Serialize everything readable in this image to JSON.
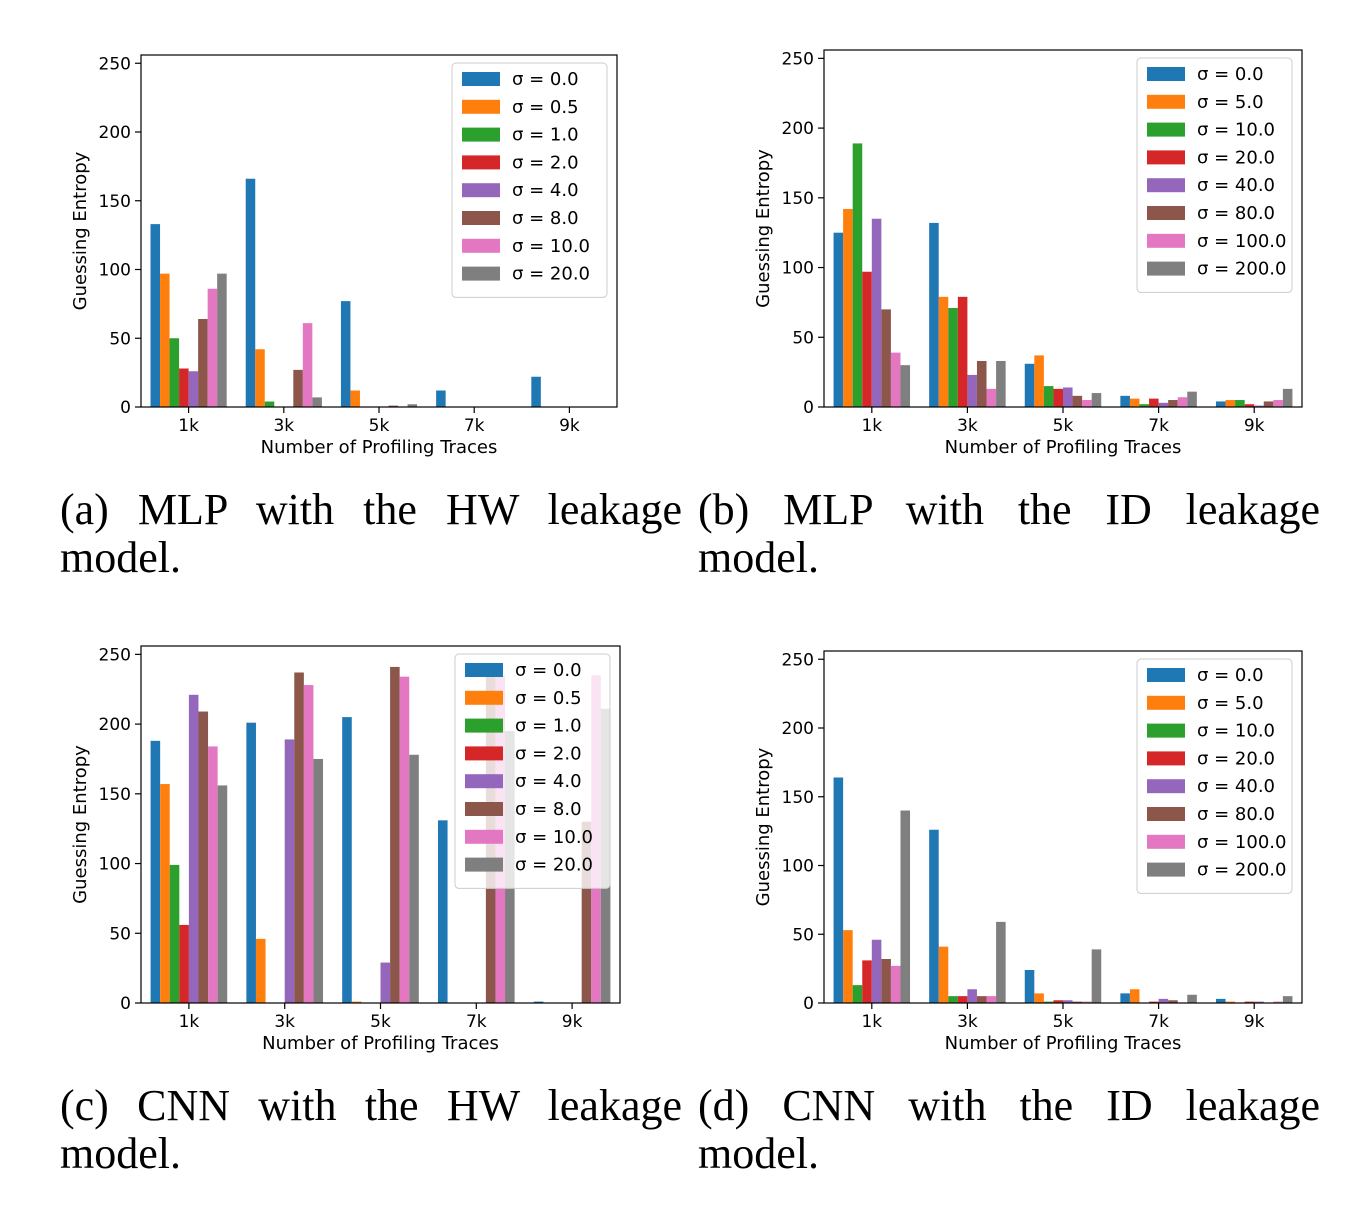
{
  "colors": [
    "#1f77b4",
    "#ff7f0e",
    "#2ca02c",
    "#d62728",
    "#9467bd",
    "#8c564b",
    "#e377c2",
    "#7f7f7f"
  ],
  "chart_data": [
    {
      "id": "a",
      "type": "bar",
      "caption": "(a) MLP with the HW leakage model.",
      "xlabel": "Number of Profiling Traces",
      "ylabel": "Guessing Entropy",
      "categories": [
        "1k",
        "3k",
        "5k",
        "7k",
        "9k"
      ],
      "ylim": [
        0,
        256
      ],
      "yticks": [
        "0",
        "50",
        "100",
        "150",
        "200",
        "250"
      ],
      "legend_position": "top-right",
      "series": [
        {
          "name": "σ = 0.0",
          "values": [
            133,
            166,
            77,
            12,
            22
          ]
        },
        {
          "name": "σ = 0.5",
          "values": [
            97,
            42,
            12,
            0,
            0
          ]
        },
        {
          "name": "σ = 1.0",
          "values": [
            50,
            4,
            0,
            0,
            0
          ]
        },
        {
          "name": "σ = 2.0",
          "values": [
            28,
            0,
            0,
            0,
            0
          ]
        },
        {
          "name": "σ = 4.0",
          "values": [
            26,
            0,
            0,
            0,
            0
          ]
        },
        {
          "name": "σ = 8.0",
          "values": [
            64,
            27,
            1,
            0,
            0
          ]
        },
        {
          "name": "σ = 10.0",
          "values": [
            86,
            61,
            0,
            0,
            0
          ]
        },
        {
          "name": "σ = 20.0",
          "values": [
            97,
            7,
            2,
            0,
            0
          ]
        }
      ]
    },
    {
      "id": "b",
      "type": "bar",
      "caption": "(b) MLP with the ID leakage model.",
      "xlabel": "Number of Profiling Traces",
      "ylabel": "Guessing Entropy",
      "categories": [
        "1k",
        "3k",
        "5k",
        "7k",
        "9k"
      ],
      "ylim": [
        0,
        256
      ],
      "yticks": [
        "0",
        "50",
        "100",
        "150",
        "200",
        "250"
      ],
      "legend_position": "top-right",
      "series": [
        {
          "name": "σ = 0.0",
          "values": [
            125,
            132,
            31,
            8,
            4
          ]
        },
        {
          "name": "σ = 5.0",
          "values": [
            142,
            79,
            37,
            6,
            5
          ]
        },
        {
          "name": "σ = 10.0",
          "values": [
            189,
            71,
            15,
            2,
            5
          ]
        },
        {
          "name": "σ = 20.0",
          "values": [
            97,
            79,
            13,
            6,
            2
          ]
        },
        {
          "name": "σ = 40.0",
          "values": [
            135,
            23,
            14,
            3,
            1
          ]
        },
        {
          "name": "σ = 80.0",
          "values": [
            70,
            33,
            8,
            5,
            4
          ]
        },
        {
          "name": "σ = 100.0",
          "values": [
            39,
            13,
            5,
            7,
            5
          ]
        },
        {
          "name": "σ = 200.0",
          "values": [
            30,
            33,
            10,
            11,
            13
          ]
        }
      ]
    },
    {
      "id": "c",
      "type": "bar",
      "caption": "(c) CNN with the HW leakage model.",
      "xlabel": "Number of Profiling Traces",
      "ylabel": "Guessing Entropy",
      "categories": [
        "1k",
        "3k",
        "5k",
        "7k",
        "9k"
      ],
      "ylim": [
        0,
        256
      ],
      "yticks": [
        "0",
        "50",
        "100",
        "150",
        "200",
        "250"
      ],
      "legend_position": "top-right",
      "series": [
        {
          "name": "σ = 0.0",
          "values": [
            188,
            201,
            205,
            131,
            1
          ]
        },
        {
          "name": "σ = 0.5",
          "values": [
            157,
            46,
            1,
            0,
            0
          ]
        },
        {
          "name": "σ = 1.0",
          "values": [
            99,
            0,
            0,
            0,
            0
          ]
        },
        {
          "name": "σ = 2.0",
          "values": [
            56,
            0,
            0,
            0,
            0
          ]
        },
        {
          "name": "σ = 4.0",
          "values": [
            221,
            189,
            29,
            0,
            0
          ]
        },
        {
          "name": "σ = 8.0",
          "values": [
            209,
            237,
            241,
            240,
            130
          ]
        },
        {
          "name": "σ = 10.0",
          "values": [
            184,
            228,
            234,
            235,
            235
          ]
        },
        {
          "name": "σ = 20.0",
          "values": [
            156,
            175,
            178,
            195,
            211
          ]
        }
      ]
    },
    {
      "id": "d",
      "type": "bar",
      "caption": "(d) CNN with the ID leakage model.",
      "xlabel": "Number of Profiling Traces",
      "ylabel": "Guessing Entropy",
      "categories": [
        "1k",
        "3k",
        "5k",
        "7k",
        "9k"
      ],
      "ylim": [
        0,
        256
      ],
      "yticks": [
        "0",
        "50",
        "100",
        "150",
        "200",
        "250"
      ],
      "legend_position": "top-right",
      "series": [
        {
          "name": "σ = 0.0",
          "values": [
            164,
            126,
            24,
            7,
            3
          ]
        },
        {
          "name": "σ = 5.0",
          "values": [
            53,
            41,
            7,
            10,
            1
          ]
        },
        {
          "name": "σ = 10.0",
          "values": [
            13,
            5,
            1,
            0,
            0
          ]
        },
        {
          "name": "σ = 20.0",
          "values": [
            31,
            5,
            2,
            1,
            1
          ]
        },
        {
          "name": "σ = 40.0",
          "values": [
            46,
            10,
            2,
            3,
            1
          ]
        },
        {
          "name": "σ = 80.0",
          "values": [
            32,
            5,
            1,
            2,
            0
          ]
        },
        {
          "name": "σ = 100.0",
          "values": [
            27,
            5,
            1,
            0,
            1
          ]
        },
        {
          "name": "σ = 200.0",
          "values": [
            140,
            59,
            39,
            6,
            5
          ]
        }
      ]
    }
  ]
}
